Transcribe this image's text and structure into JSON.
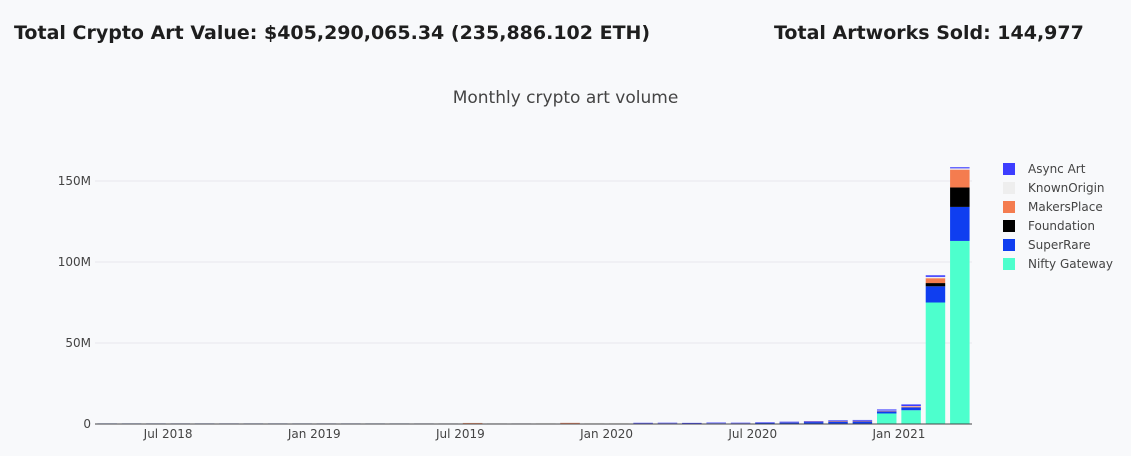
{
  "header": {
    "total_value_label": "Total Crypto Art Value: $405,290,065.34 (235,886.102 ETH)",
    "total_sold_label": "Total Artworks Sold: 144,977"
  },
  "chart_data": {
    "type": "bar",
    "stacked": true,
    "title": "Monthly crypto art volume",
    "xlabel": "",
    "ylabel": "",
    "ylim": [
      0,
      165000000
    ],
    "y_ticks": [
      0,
      50000000,
      100000000,
      150000000
    ],
    "y_tick_labels": [
      "0",
      "50M",
      "100M",
      "150M"
    ],
    "x_tick_labels": [
      "Jul 2018",
      "Jan 2019",
      "Jul 2019",
      "Jan 2020",
      "Jul 2020",
      "Jan 2021"
    ],
    "grid": true,
    "legend_position": "right",
    "categories": [
      "2018-04",
      "2018-05",
      "2018-06",
      "2018-07",
      "2018-08",
      "2018-09",
      "2018-10",
      "2018-11",
      "2018-12",
      "2019-01",
      "2019-02",
      "2019-03",
      "2019-04",
      "2019-05",
      "2019-06",
      "2019-07",
      "2019-08",
      "2019-09",
      "2019-10",
      "2019-11",
      "2019-12",
      "2020-01",
      "2020-02",
      "2020-03",
      "2020-04",
      "2020-05",
      "2020-06",
      "2020-07",
      "2020-08",
      "2020-09",
      "2020-10",
      "2020-11",
      "2020-12",
      "2021-01",
      "2021-02",
      "2021-03"
    ],
    "series": [
      {
        "name": "Nifty Gateway",
        "color": "#4dffcd",
        "values": [
          0,
          0,
          0,
          0,
          0,
          0,
          0,
          0,
          0,
          0,
          0,
          0,
          0,
          0,
          0,
          0,
          0,
          0,
          0,
          0,
          0,
          0,
          0,
          0,
          0,
          0,
          0,
          0,
          0,
          0,
          0,
          0,
          6500000,
          8500000,
          75000000,
          113000000
        ]
      },
      {
        "name": "SuperRare",
        "color": "#0f3ef0",
        "values": [
          30000,
          40000,
          50000,
          60000,
          50000,
          60000,
          70000,
          70000,
          80000,
          90000,
          100000,
          110000,
          120000,
          150000,
          200000,
          250000,
          220000,
          200000,
          300000,
          350000,
          300000,
          300000,
          350000,
          400000,
          300000,
          500000,
          400000,
          700000,
          900000,
          1200000,
          1500000,
          1600000,
          1300000,
          1800000,
          10000000,
          21000000
        ]
      },
      {
        "name": "Foundation",
        "color": "#000000",
        "values": [
          0,
          0,
          0,
          0,
          0,
          0,
          0,
          0,
          0,
          0,
          0,
          0,
          0,
          0,
          0,
          0,
          0,
          0,
          0,
          0,
          0,
          0,
          0,
          0,
          0,
          0,
          0,
          0,
          0,
          0,
          0,
          0,
          0,
          0,
          2000000,
          12000000
        ]
      },
      {
        "name": "MakersPlace",
        "color": "#f47c4f",
        "values": [
          0,
          0,
          0,
          0,
          0,
          0,
          0,
          0,
          0,
          0,
          0,
          0,
          0,
          0,
          0,
          300000,
          0,
          0,
          0,
          400000,
          0,
          0,
          0,
          0,
          0,
          0,
          0,
          0,
          100000,
          200000,
          300000,
          300000,
          200000,
          500000,
          3000000,
          11000000
        ]
      },
      {
        "name": "KnownOrigin",
        "color": "#eeeeee",
        "values": [
          10000,
          10000,
          10000,
          10000,
          10000,
          10000,
          10000,
          10000,
          10000,
          10000,
          10000,
          10000,
          10000,
          10000,
          10000,
          20000,
          20000,
          20000,
          20000,
          20000,
          20000,
          20000,
          20000,
          20000,
          20000,
          20000,
          30000,
          30000,
          50000,
          80000,
          100000,
          100000,
          300000,
          300000,
          800000,
          800000
        ]
      },
      {
        "name": "Async Art",
        "color": "#3d3dff",
        "values": [
          0,
          0,
          0,
          0,
          0,
          0,
          0,
          0,
          0,
          0,
          0,
          0,
          0,
          0,
          0,
          0,
          0,
          0,
          0,
          0,
          0,
          0,
          50000,
          100000,
          100000,
          100000,
          150000,
          200000,
          250000,
          300000,
          400000,
          500000,
          700000,
          1000000,
          1000000,
          700000
        ]
      }
    ]
  }
}
